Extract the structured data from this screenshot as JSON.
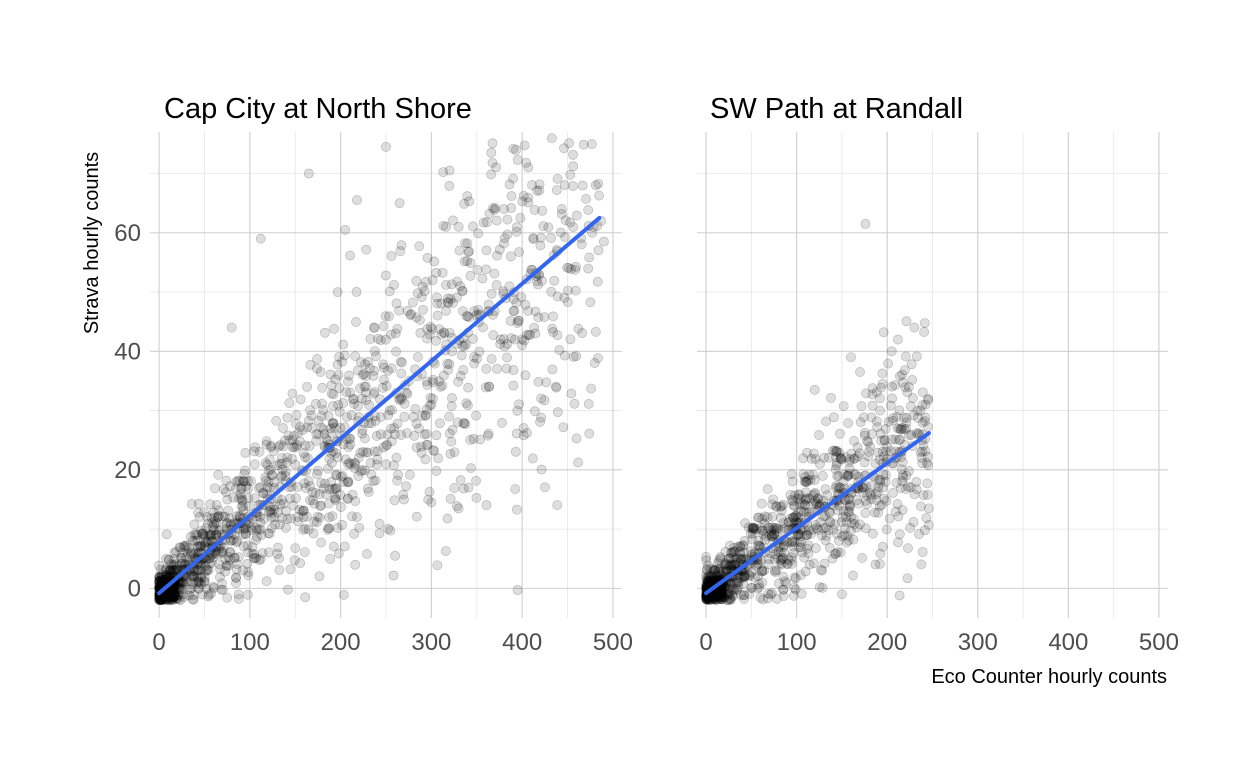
{
  "chart_data": {
    "type": "scatter",
    "xlabel": "Eco Counter hourly counts",
    "ylabel": "Strava hourly counts",
    "xlim": [
      -10,
      510
    ],
    "ylim": [
      -5,
      77
    ],
    "x_ticks": [
      0,
      100,
      200,
      300,
      400,
      500
    ],
    "y_ticks": [
      0,
      20,
      40,
      60
    ],
    "grid": true,
    "colors": {
      "points": "#000000",
      "fit_line": "#3366ee",
      "grid": "#cfcfcf"
    },
    "panels": [
      {
        "title": "Cap City at North Shore",
        "fit_line": {
          "x": [
            0,
            485
          ],
          "y": [
            -0.8,
            62.5
          ]
        },
        "x_max_approx": 485,
        "highlight_points": [
          {
            "x": 250,
            "y": 74.5
          },
          {
            "x": 366,
            "y": 73.5
          },
          {
            "x": 165,
            "y": 70
          },
          {
            "x": 320,
            "y": 70.5
          },
          {
            "x": 265,
            "y": 65
          },
          {
            "x": 218,
            "y": 65.5
          },
          {
            "x": 380,
            "y": 64
          },
          {
            "x": 398,
            "y": 62.5
          },
          {
            "x": 112,
            "y": 59
          },
          {
            "x": 205,
            "y": 60.5
          },
          {
            "x": 316,
            "y": 61
          },
          {
            "x": 330,
            "y": 61
          },
          {
            "x": 490,
            "y": 58.5
          },
          {
            "x": 487,
            "y": 62
          },
          {
            "x": 178,
            "y": 36.5
          },
          {
            "x": 80,
            "y": 44
          },
          {
            "x": 260,
            "y": 5.5
          },
          {
            "x": 161,
            "y": -1.5
          },
          {
            "x": 330,
            "y": 13.5
          },
          {
            "x": 300,
            "y": 14.5
          }
        ]
      },
      {
        "title": "SW Path at Randall",
        "fit_line": {
          "x": [
            0,
            246
          ],
          "y": [
            -0.8,
            26.2
          ]
        },
        "x_max_approx": 246,
        "highlight_points": [
          {
            "x": 176,
            "y": 61.5
          },
          {
            "x": 230,
            "y": 44
          },
          {
            "x": 205,
            "y": 40
          },
          {
            "x": 160,
            "y": 39
          },
          {
            "x": 170,
            "y": 36.5
          },
          {
            "x": 195,
            "y": 34.5
          },
          {
            "x": 245,
            "y": 32
          },
          {
            "x": 120,
            "y": 33.5
          },
          {
            "x": 246,
            "y": 13.5
          },
          {
            "x": 150,
            "y": -1
          }
        ]
      }
    ]
  }
}
